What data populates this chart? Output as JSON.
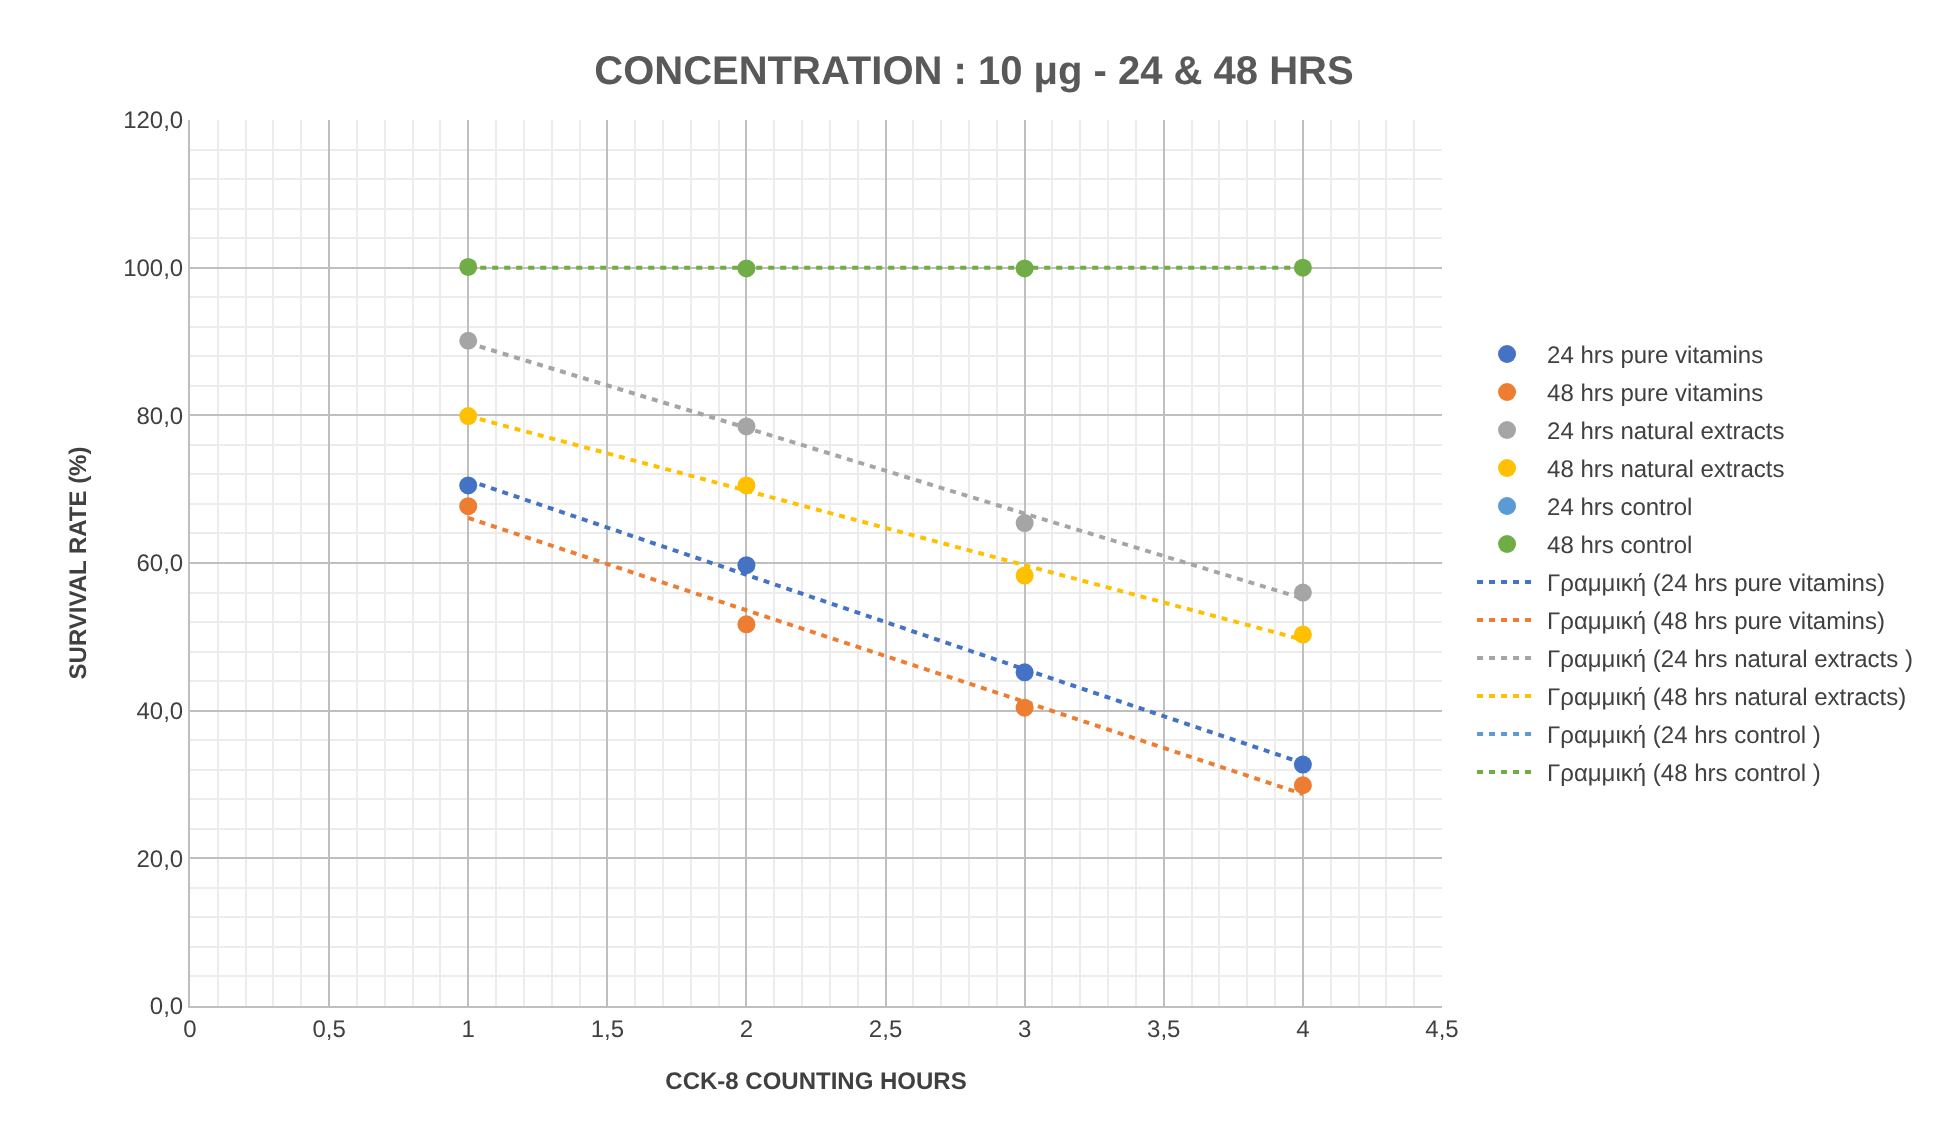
{
  "chart_data": {
    "type": "scatter",
    "title": "CONCENTRATION : 10 μg - 24 & 48 HRS",
    "xlabel": "CCK-8 COUNTING HOURS",
    "ylabel": "SURVIVAL RATE (%)",
    "xlim": [
      0,
      4.5
    ],
    "xticks": [
      0,
      {
        "value": 0.5,
        "label": "0,5"
      },
      1,
      {
        "value": 1.5,
        "label": "1,5"
      },
      2,
      {
        "value": 2.5,
        "label": "2,5"
      },
      3,
      {
        "value": 3.5,
        "label": "3,5"
      },
      4,
      {
        "value": 4.5,
        "label": "4,5"
      }
    ],
    "ylim": [
      0,
      120
    ],
    "yticks": [
      {
        "value": 0,
        "label": "0,0"
      },
      {
        "value": 20,
        "label": "20,0"
      },
      {
        "value": 40,
        "label": "40,0"
      },
      {
        "value": 60,
        "label": "60,0"
      },
      {
        "value": 80,
        "label": "80,0"
      },
      {
        "value": 100,
        "label": "100,0"
      },
      {
        "value": 120,
        "label": "120,0"
      }
    ],
    "grid": true,
    "legend": "right",
    "x": [
      1,
      2,
      3,
      4
    ],
    "series": [
      {
        "name": "24 hrs pure vitamins",
        "marker": "circle",
        "color": "#4472c4",
        "values": [
          70.5,
          59.7,
          45.2,
          32.7
        ]
      },
      {
        "name": "48 hrs pure vitamins",
        "marker": "circle",
        "color": "#ed7d31",
        "values": [
          67.7,
          51.7,
          40.4,
          29.9
        ]
      },
      {
        "name": "24 hrs natural extracts",
        "marker": "circle",
        "color": "#a5a5a5",
        "values": [
          90.1,
          78.5,
          65.4,
          56.0
        ]
      },
      {
        "name": "48 hrs natural extracts",
        "marker": "circle",
        "color": "#ffc000",
        "values": [
          79.9,
          70.5,
          58.3,
          50.3
        ]
      },
      {
        "name": "24 hrs control",
        "marker": "circle",
        "color": "#5b9bd5",
        "values": [
          null,
          null,
          null,
          null
        ]
      },
      {
        "name": "48 hrs control",
        "marker": "circle",
        "color": "#70ad47",
        "values": [
          100.1,
          99.9,
          99.9,
          100.0
        ]
      },
      {
        "name": "Γραμμική (24 hrs pure vitamins)",
        "type": "line",
        "line_style": "dotted",
        "color": "#4472c4",
        "values": [
          71.2,
          58.4,
          45.6,
          32.9
        ]
      },
      {
        "name": "Γραμμική (48 hrs pure vitamins)",
        "type": "line",
        "line_style": "dotted",
        "color": "#ed7d31",
        "values": [
          66.1,
          53.6,
          41.2,
          28.7
        ]
      },
      {
        "name": "Γραμμική (24 hrs natural extracts )",
        "type": "line",
        "line_style": "dotted",
        "color": "#a5a5a5",
        "values": [
          89.8,
          78.3,
          66.7,
          55.2
        ]
      },
      {
        "name": "Γραμμική (48 hrs natural extracts)",
        "type": "line",
        "line_style": "dotted",
        "color": "#ffc000",
        "values": [
          79.9,
          69.8,
          59.7,
          49.6
        ]
      },
      {
        "name": "Γραμμική (24 hrs control )",
        "type": "line",
        "line_style": "dotted",
        "color": "#5b9bd5",
        "values": [
          null,
          null,
          null,
          null
        ]
      },
      {
        "name": "Γραμμική (48 hrs control )",
        "type": "line",
        "line_style": "dotted",
        "color": "#70ad47",
        "values": [
          100.0,
          100.0,
          100.0,
          100.0
        ]
      }
    ]
  }
}
